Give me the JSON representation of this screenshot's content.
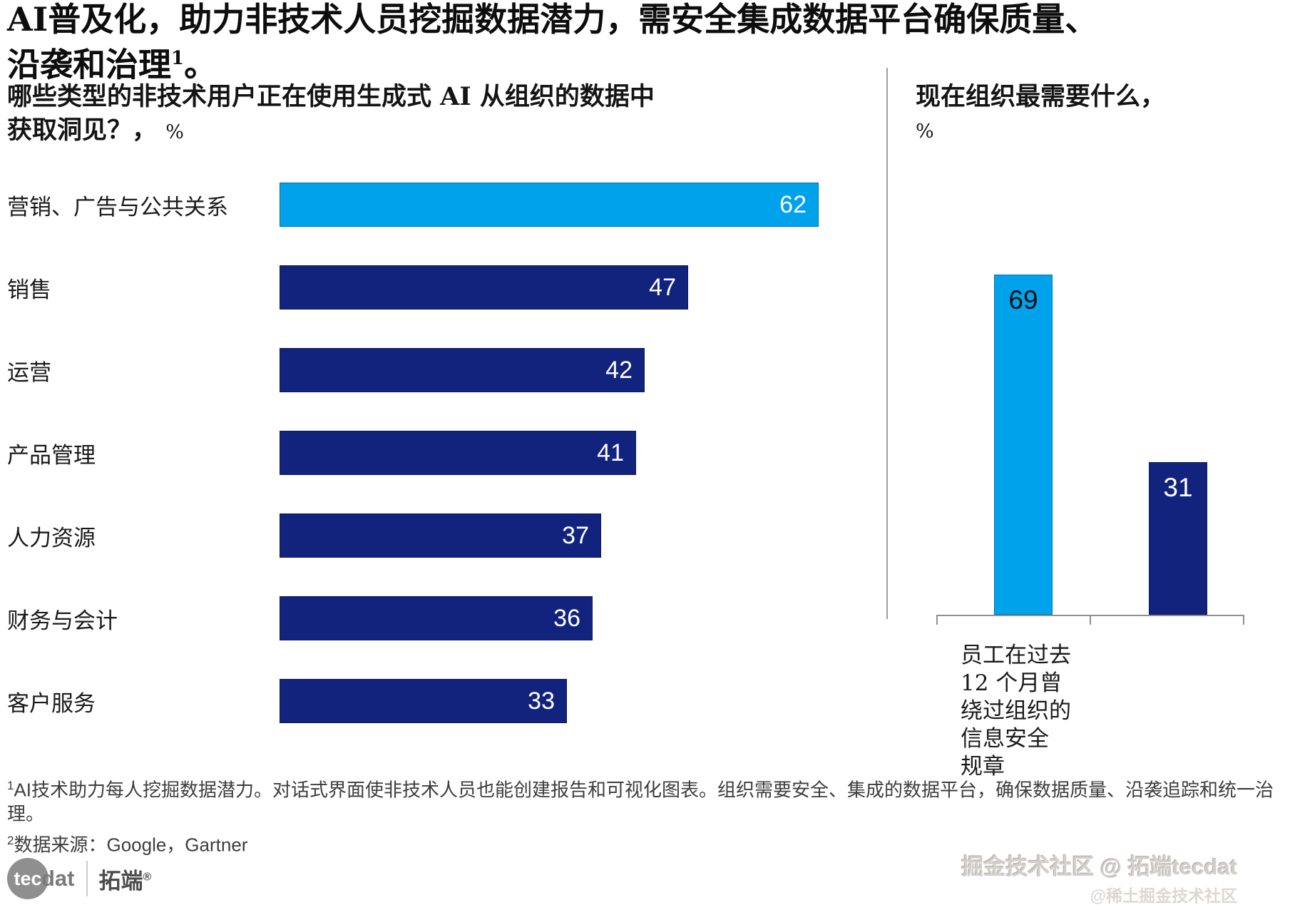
{
  "colors": {
    "cyan": "#00A3EB",
    "navy": "#12237E",
    "axis_gray": "#8f8f8f",
    "divider_gray": "#9e9e9e"
  },
  "title": {
    "line1": "AI普及化，助力非技术人员挖掘数据潜力，需安全集成数据平台确保质量、",
    "line2": "沿袭和治理",
    "footnote_ref": "1",
    "suffix": "。"
  },
  "left_section": {
    "question_line1": "哪些类型的非技术用户正在使用生成式 AI 从组织的数据中",
    "question_line2": "获取洞见？，",
    "unit": "%"
  },
  "right_section": {
    "question": "现在组织最需要什么，",
    "unit": "%"
  },
  "chart_data": [
    {
      "type": "bar",
      "orientation": "horizontal",
      "title": "哪些类型的非技术用户正在使用生成式 AI 从组织的数据中获取洞见？，%",
      "categories": [
        "营销、广告与公共关系",
        "销售",
        "运营",
        "产品管理",
        "人力资源",
        "财务与会计",
        "客户服务"
      ],
      "values": [
        62,
        47,
        42,
        41,
        37,
        36,
        33
      ],
      "xlim": [
        0,
        62
      ],
      "highlight_index": 0,
      "highlight_color": "#00A3EB",
      "default_color": "#12237E",
      "value_label_color": "#ffffff",
      "grid": false,
      "legend": "none"
    },
    {
      "type": "bar",
      "orientation": "vertical",
      "title": "现在组织最需要什么，%",
      "categories": [
        "员工在过去\n12 个月曾\n绕过组织的\n信息安全\n规章",
        ""
      ],
      "values": [
        69,
        31
      ],
      "ylim": [
        0,
        69
      ],
      "colors": [
        "#00A3EB",
        "#12237E"
      ],
      "value_label_colors": [
        "#0d0d0d",
        "#ffffff"
      ],
      "grid": false,
      "legend": "none"
    }
  ],
  "footnotes": [
    {
      "ref": "1",
      "text": "AI技术助力每人挖掘数据潜力。对话式界面使非技术人员也能创建报告和可视化图表。组织需要安全、集成的数据平台，确保数据质量、沿袭追踪和统一治理。"
    },
    {
      "ref": "2",
      "text": "数据来源：Google，Gartner"
    }
  ],
  "branding": {
    "logo_tec": "tec",
    "logo_dat": "dat",
    "logo_cn": "拓端",
    "logo_reg": "®"
  },
  "watermark": {
    "line1": "掘金技术社区 @ 拓端tecdat",
    "line2": "@稀土掘金技术社区"
  }
}
